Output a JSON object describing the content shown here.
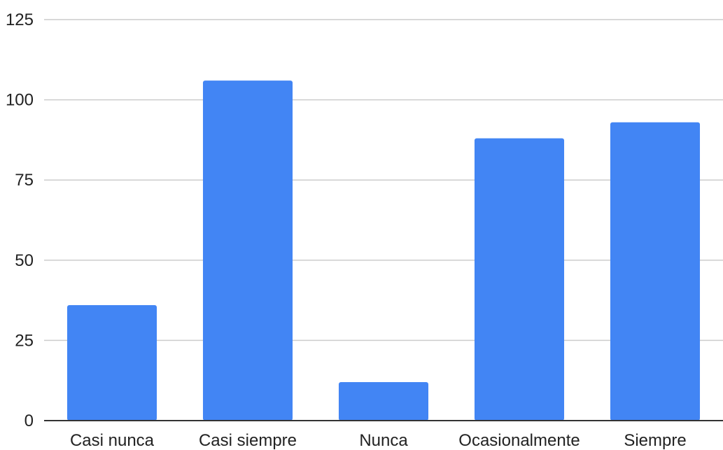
{
  "chart_data": {
    "type": "bar",
    "categories": [
      "Casi nunca",
      "Casi siempre",
      "Nunca",
      "Ocasionalmente",
      "Siempre"
    ],
    "values": [
      36,
      106,
      12,
      88,
      93
    ],
    "ylim": [
      0,
      125
    ],
    "yticks": [
      0,
      25,
      50,
      75,
      100,
      125
    ],
    "grid": true,
    "bar_color": "#4285f4",
    "title": "",
    "xlabel": "",
    "ylabel": ""
  }
}
